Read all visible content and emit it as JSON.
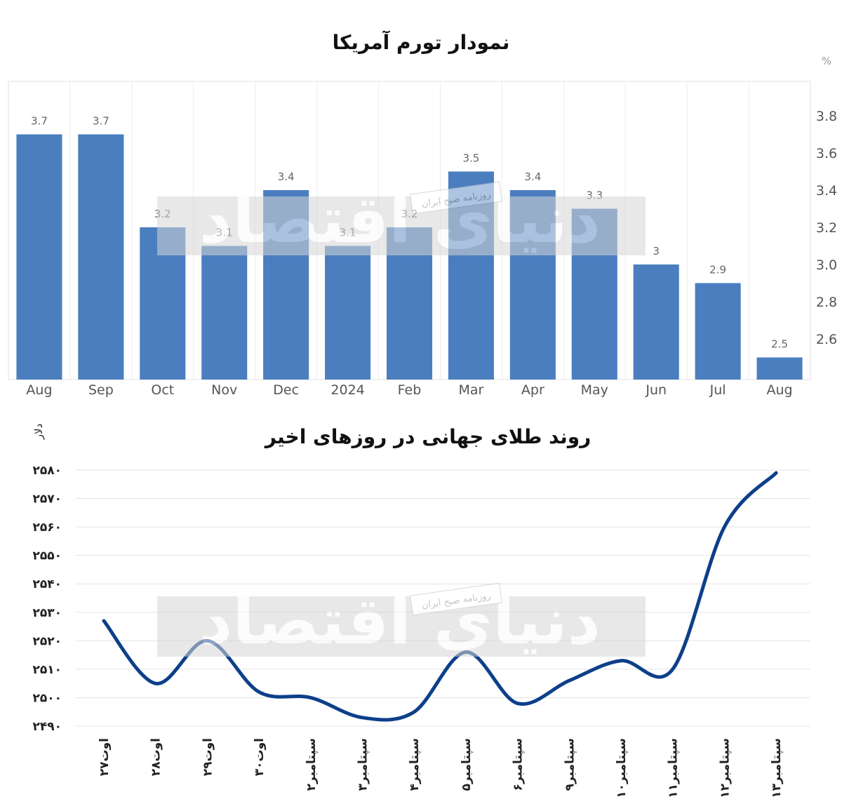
{
  "chart_data": [
    {
      "type": "bar",
      "title": "نمودار تورم آمریکا",
      "unit_label": "%",
      "categories": [
        "Aug",
        "Sep",
        "Oct",
        "Nov",
        "Dec",
        "2024",
        "Feb",
        "Mar",
        "Apr",
        "May",
        "Jun",
        "Jul",
        "Aug"
      ],
      "values": [
        3.7,
        3.7,
        3.2,
        3.1,
        3.4,
        3.1,
        3.2,
        3.5,
        3.4,
        3.3,
        3.0,
        2.9,
        2.5
      ],
      "value_labels": [
        "3.7",
        "3.7",
        "3.2",
        "3.1",
        "3.4",
        "3.1",
        "3.2",
        "3.5",
        "3.4",
        "3.3",
        "3",
        "2.9",
        "2.5"
      ],
      "yticks": [
        2.6,
        2.8,
        3.0,
        3.2,
        3.4,
        3.6,
        3.8
      ],
      "ytick_labels": [
        "2.6",
        "2.8",
        "3.0",
        "3.2",
        "3.4",
        "3.6",
        "3.8"
      ],
      "ylim": [
        2.4,
        4.0
      ],
      "bar_color": "#4a7ebf",
      "grid": "vertical",
      "axis_side": "right"
    },
    {
      "type": "line",
      "title": "روند طلای جهانی در روزهای اخیر",
      "ylabel": "دلار",
      "categories": [
        "۲۷اوت",
        "۲۸اوت",
        "۲۹اوت",
        "۳۰اوت",
        "۲سپتامبر",
        "۳سپتامبر",
        "۴سپتامبر",
        "۵سپتامبر",
        "۶سپتامبر",
        "۹سپتامبر",
        "۱۰سپتامبر",
        "۱۱سپتامبر",
        "۱۲سپتامبر",
        "۱۳سپتامبر"
      ],
      "values": [
        2527,
        2505,
        2520,
        2502,
        2500,
        2493,
        2495,
        2516,
        2498,
        2506,
        2513,
        2510,
        2560,
        2579
      ],
      "yticks": [
        2490,
        2500,
        2510,
        2520,
        2530,
        2540,
        2550,
        2560,
        2570,
        2580
      ],
      "ytick_labels": [
        "۲۴۹۰",
        "۲۵۰۰",
        "۲۵۱۰",
        "۲۵۲۰",
        "۲۵۳۰",
        "۲۵۴۰",
        "۲۵۵۰",
        "۲۵۶۰",
        "۲۵۷۰",
        "۲۵۸۰"
      ],
      "ylim": [
        2490,
        2582
      ],
      "line_color": "#0d3f8a",
      "grid": "horizontal"
    }
  ],
  "watermark": {
    "logo_text": "دنیای اقتصاد",
    "tagline": "روزنامه صبح ایران"
  }
}
